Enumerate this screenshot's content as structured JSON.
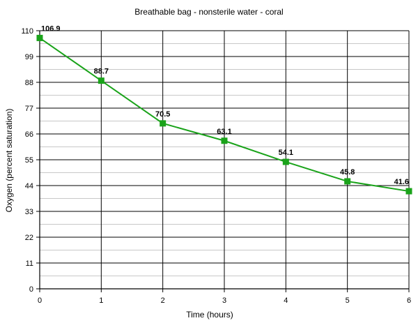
{
  "chart_data": {
    "type": "line",
    "title": "Breathable bag - nonsterile water - coral",
    "xlabel": "Time (hours)",
    "ylabel": "Oxygen (percent saturation)",
    "xlim": [
      0,
      6
    ],
    "ylim": [
      0,
      110
    ],
    "x_ticks": [
      "0",
      "1",
      "2",
      "3",
      "4",
      "5",
      "6"
    ],
    "y_ticks": [
      "0",
      "11",
      "22",
      "33",
      "44",
      "55",
      "66",
      "77",
      "88",
      "99",
      "110"
    ],
    "grid": true,
    "series": [
      {
        "x": [
          0,
          1,
          2,
          3,
          4,
          5,
          6
        ],
        "values": [
          106.9,
          88.7,
          70.5,
          63.1,
          54.1,
          45.8,
          41.6
        ],
        "labels": [
          "106.9",
          "88.7",
          "70.5",
          "63.1",
          "54.1",
          "45.8",
          "41.6"
        ],
        "color": "#1aa31a"
      }
    ]
  }
}
